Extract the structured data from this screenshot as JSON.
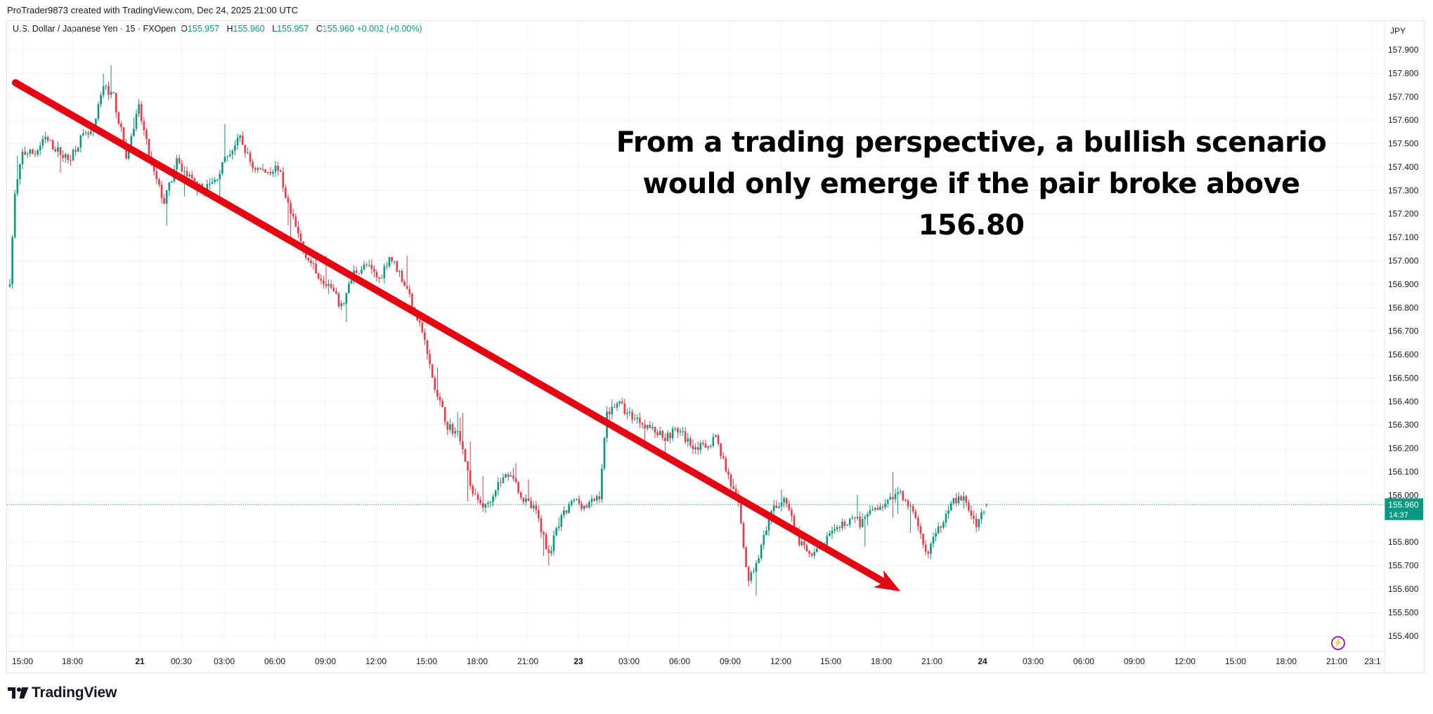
{
  "header": {
    "attribution": "ProTrader9873 created with TradingView.com, Dec 24, 2025 21:00 UTC"
  },
  "legend": {
    "symbol": "U.S. Dollar / Japanese Yen · 15 · FXOpen",
    "open_label": "O",
    "open": "155.957",
    "high_label": "H",
    "high": "155.960",
    "low_label": "L",
    "low": "155.957",
    "close_label": "C",
    "close": "155.960",
    "change": "+0.002 (+0.00%)"
  },
  "price_badge": {
    "price": "155.960",
    "countdown": "14:37"
  },
  "currency": "JPY",
  "annotation": {
    "line1": "From a trading perspective, a bullish scenario",
    "line2": "would only emerge if the pair broke above 156.80"
  },
  "logo": {
    "text": "TradingView"
  },
  "colors": {
    "up": "#089981",
    "down": "#f23645",
    "arrow": "#e30613",
    "current_line": "#089981"
  },
  "icons": {
    "bolt": "lightning-icon",
    "logo": "tradingview-logo-icon"
  },
  "chart_data": {
    "type": "candlestick",
    "title": "",
    "ylabel": "",
    "ylim": [
      155.32,
      157.98
    ],
    "y_ticks": [
      "157.900",
      "157.800",
      "157.700",
      "157.600",
      "157.500",
      "157.400",
      "157.300",
      "157.200",
      "157.100",
      "157.000",
      "156.900",
      "156.800",
      "156.700",
      "156.600",
      "156.500",
      "156.400",
      "156.300",
      "156.200",
      "156.100",
      "156.000",
      "155.800",
      "155.700",
      "155.600",
      "155.500",
      "155.400"
    ],
    "x_ticks": [
      "15:00",
      "18:00",
      "21",
      "00:30",
      "03:00",
      "06:00",
      "09:00",
      "12:00",
      "15:00",
      "18:00",
      "21:00",
      "23",
      "03:00",
      "06:00",
      "09:00",
      "12:00",
      "15:00",
      "18:00",
      "21:00",
      "24",
      "03:00",
      "06:00",
      "09:00",
      "12:00",
      "15:00",
      "18:00",
      "21:00",
      "23:1"
    ],
    "day_tick_labels": [
      "21",
      "23",
      "24"
    ],
    "current_price": 155.96,
    "anchors": [
      [
        0,
        156.92
      ],
      [
        2,
        157.28
      ],
      [
        5,
        157.46
      ],
      [
        10,
        157.46
      ],
      [
        14,
        157.52
      ],
      [
        18,
        157.48
      ],
      [
        23,
        157.43
      ],
      [
        28,
        157.52
      ],
      [
        33,
        157.55
      ],
      [
        37,
        157.75
      ],
      [
        41,
        157.7
      ],
      [
        46,
        157.45
      ],
      [
        51,
        157.65
      ],
      [
        56,
        157.4
      ],
      [
        61,
        157.25
      ],
      [
        66,
        157.42
      ],
      [
        71,
        157.35
      ],
      [
        76,
        157.3
      ],
      [
        81,
        157.34
      ],
      [
        86,
        157.45
      ],
      [
        91,
        157.52
      ],
      [
        96,
        157.4
      ],
      [
        101,
        157.38
      ],
      [
        106,
        157.4
      ],
      [
        111,
        157.2
      ],
      [
        116,
        157.05
      ],
      [
        121,
        156.95
      ],
      [
        126,
        156.9
      ],
      [
        131,
        156.8
      ],
      [
        136,
        156.95
      ],
      [
        141,
        156.98
      ],
      [
        146,
        156.92
      ],
      [
        150,
        157.02
      ],
      [
        154,
        156.95
      ],
      [
        158,
        156.85
      ],
      [
        163,
        156.7
      ],
      [
        168,
        156.45
      ],
      [
        173,
        156.3
      ],
      [
        178,
        156.25
      ],
      [
        183,
        156.0
      ],
      [
        188,
        155.95
      ],
      [
        193,
        156.05
      ],
      [
        198,
        156.1
      ],
      [
        203,
        155.98
      ],
      [
        208,
        155.93
      ],
      [
        213,
        155.75
      ],
      [
        218,
        155.9
      ],
      [
        223,
        155.98
      ],
      [
        228,
        155.95
      ],
      [
        233,
        156.0
      ],
      [
        236,
        156.35
      ],
      [
        240,
        156.4
      ],
      [
        244,
        156.35
      ],
      [
        249,
        156.32
      ],
      [
        254,
        156.28
      ],
      [
        259,
        156.25
      ],
      [
        264,
        156.28
      ],
      [
        269,
        156.22
      ],
      [
        274,
        156.2
      ],
      [
        279,
        156.25
      ],
      [
        284,
        156.08
      ],
      [
        288,
        155.95
      ],
      [
        292,
        155.62
      ],
      [
        297,
        155.78
      ],
      [
        302,
        155.95
      ],
      [
        307,
        155.98
      ],
      [
        312,
        155.8
      ],
      [
        317,
        155.73
      ],
      [
        322,
        155.8
      ],
      [
        327,
        155.85
      ],
      [
        332,
        155.9
      ],
      [
        337,
        155.88
      ],
      [
        342,
        155.95
      ],
      [
        347,
        155.97
      ],
      [
        352,
        156.02
      ],
      [
        357,
        155.92
      ],
      [
        362,
        155.75
      ],
      [
        367,
        155.85
      ],
      [
        372,
        155.98
      ],
      [
        377,
        155.98
      ],
      [
        382,
        155.88
      ],
      [
        386,
        155.96
      ]
    ],
    "ohlc": [],
    "arrow": {
      "from": [
        2.2,
        157.76
      ],
      "to": [
        352,
        155.59
      ]
    }
  }
}
